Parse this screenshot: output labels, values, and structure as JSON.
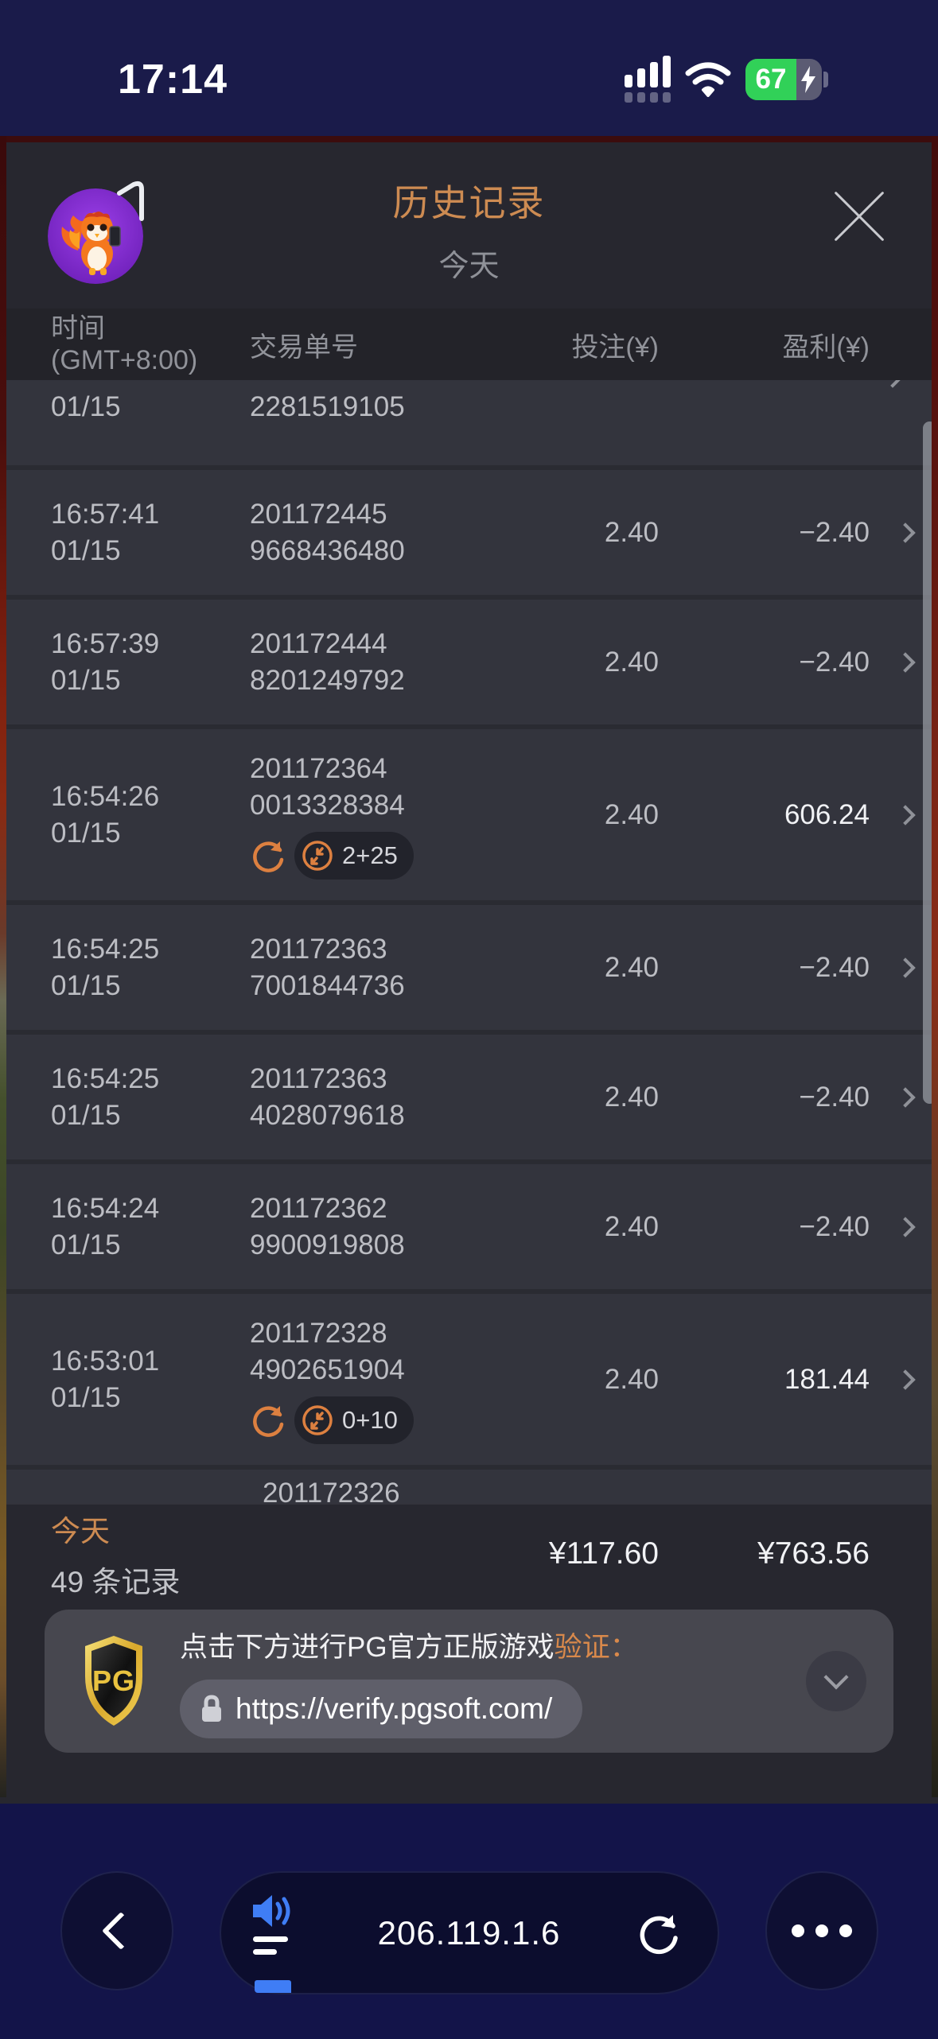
{
  "status_bar": {
    "time": "17:14",
    "battery_percent": "67"
  },
  "modal": {
    "header": {
      "title": "历史记录",
      "subtitle": "今天"
    },
    "table": {
      "headers": {
        "time_l1": "时间",
        "time_l2": "(GMT+8:00)",
        "order": "交易单号",
        "bet": "投注(¥)",
        "profit": "盈利(¥)"
      },
      "partial_top": {
        "date": "01/15",
        "order": "2281519105"
      },
      "rows": [
        {
          "time": "16:57:41",
          "date": "01/15",
          "order1": "201172445",
          "order2": "9668436480",
          "bet": "2.40",
          "profit": "−2.40",
          "win": false,
          "badge": null
        },
        {
          "time": "16:57:39",
          "date": "01/15",
          "order1": "201172444",
          "order2": "8201249792",
          "bet": "2.40",
          "profit": "−2.40",
          "win": false,
          "badge": null
        },
        {
          "time": "16:54:26",
          "date": "01/15",
          "order1": "201172364",
          "order2": "0013328384",
          "bet": "2.40",
          "profit": "606.24",
          "win": true,
          "badge": "2+25"
        },
        {
          "time": "16:54:25",
          "date": "01/15",
          "order1": "201172363",
          "order2": "7001844736",
          "bet": "2.40",
          "profit": "−2.40",
          "win": false,
          "badge": null
        },
        {
          "time": "16:54:25",
          "date": "01/15",
          "order1": "201172363",
          "order2": "4028079618",
          "bet": "2.40",
          "profit": "−2.40",
          "win": false,
          "badge": null
        },
        {
          "time": "16:54:24",
          "date": "01/15",
          "order1": "201172362",
          "order2": "9900919808",
          "bet": "2.40",
          "profit": "−2.40",
          "win": false,
          "badge": null
        },
        {
          "time": "16:53:01",
          "date": "01/15",
          "order1": "201172328",
          "order2": "4902651904",
          "bet": "2.40",
          "profit": "181.44",
          "win": true,
          "badge": "0+10"
        }
      ],
      "partial_bottom": {
        "order": "201172326"
      }
    },
    "summary": {
      "label": "今天",
      "count": "49 条记录",
      "bet_total": "¥117.60",
      "profit_total": "¥763.56"
    },
    "banner": {
      "text_white": "点击下方进行PG官方正版游戏",
      "text_orange": "验证：",
      "url": "https://verify.pgsoft.com/",
      "logo": "PG"
    }
  },
  "browser_bar": {
    "address": "206.119.1.6"
  },
  "colors": {
    "accent_orange": "#cd8b52",
    "badge_orange": "#dd8040",
    "win_white": "#f1f2f5",
    "link_blue": "#3f7df5",
    "battery_green": "#31d158",
    "navy": "#1a1b4a"
  }
}
